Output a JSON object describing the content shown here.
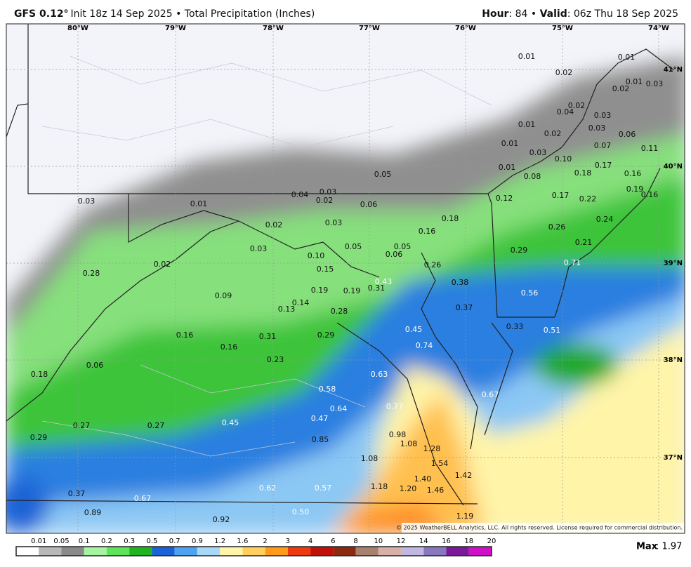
{
  "header": {
    "model": "GFS 0.12°",
    "description": " Init 18z 14 Sep 2025 • Total Precipitation (Inches)",
    "hour_label": "Hour",
    "hour_value": ": 84 • ",
    "valid_label": "Valid",
    "valid_value": ": 06z Thu 18 Sep 2025"
  },
  "map": {
    "lon_labels": [
      "80°W",
      "79°W",
      "78°W",
      "77°W",
      "76°W",
      "75°W",
      "74°W"
    ],
    "lat_labels": [
      "41°N",
      "40°N",
      "39°N",
      "38°N",
      "37°N"
    ],
    "values": [
      "0.01",
      "0.01",
      "0.02",
      "0.01",
      "0.03",
      "0.02",
      "0.02",
      "0.04",
      "0.03",
      "0.01",
      "0.03",
      "0.02",
      "0.06",
      "0.01",
      "0.07",
      "0.11",
      "0.03",
      "0.10",
      "0.01",
      "0.17",
      "0.18",
      "0.16",
      "0.05",
      "0.08",
      "0.03",
      "0.04",
      "0.02",
      "0.19",
      "0.16",
      "0.17",
      "0.22",
      "0.12",
      "0.03",
      "0.01",
      "0.06",
      "0.02",
      "0.03",
      "0.18",
      "0.24",
      "0.26",
      "0.16",
      "0.21",
      "0.05",
      "0.05",
      "0.03",
      "0.29",
      "0.10",
      "0.06",
      "0.71",
      "0.02",
      "0.26",
      "0.15",
      "0.28",
      "0.43",
      "0.38",
      "0.31",
      "0.19",
      "0.19",
      "0.56",
      "0.09",
      "0.14",
      "0.13",
      "0.37",
      "0.28",
      "0.33",
      "0.45",
      "0.51",
      "0.16",
      "0.31",
      "0.29",
      "0.74",
      "0.16",
      "0.23",
      "0.06",
      "0.18",
      "0.63",
      "0.58",
      "0.67",
      "0.77",
      "0.64",
      "0.47",
      "0.45",
      "0.27",
      "0.27",
      "0.98",
      "0.29",
      "0.85",
      "1.08",
      "1.28",
      "1.08",
      "1.54",
      "1.42",
      "1.40",
      "1.18",
      "1.20",
      "0.62",
      "0.57",
      "1.46",
      "0.37",
      "0.67",
      "0.89",
      "1.19",
      "0.50",
      "0.92"
    ],
    "copyright": "© 2025 WeatherBELL Analytics, LLC. All rights reserved. License required for commercial distribution."
  },
  "colorbar": {
    "ticks": [
      "0.01",
      "0.05",
      "0.1",
      "0.2",
      "0.3",
      "0.5",
      "0.7",
      "0.9",
      "1.2",
      "1.6",
      "2",
      "3",
      "4",
      "6",
      "8",
      "10",
      "12",
      "14",
      "16",
      "18",
      "20"
    ],
    "colors": [
      "#ffffff",
      "#b8b8b8",
      "#8a8a8a",
      "#a6f3a0",
      "#5ee35a",
      "#22b322",
      "#1a63d6",
      "#4da3ef",
      "#a8d8f8",
      "#fff5a8",
      "#ffd060",
      "#ff9a1a",
      "#ee3a10",
      "#c01008",
      "#8a2a10",
      "#a88070",
      "#d8b0a8",
      "#c0b8e0",
      "#8878c0",
      "#7a1a9a",
      "#d010c8"
    ]
  },
  "footer": {
    "max_label": "Max",
    "max_value": ": 1.97"
  }
}
